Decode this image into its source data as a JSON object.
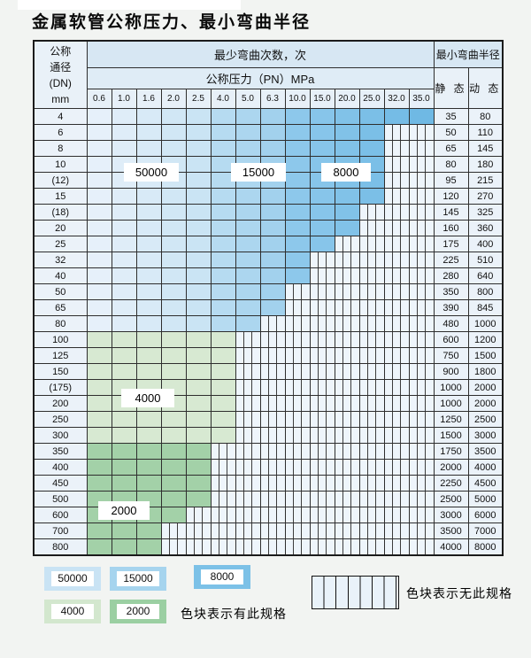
{
  "title": "金属软管公称压力、最小弯曲半径",
  "colors": {
    "blue_cols": [
      "#e6f0fa",
      "#dfedf8",
      "#d8eaf7",
      "#d1e7f5",
      "#cae4f4",
      "#b6dbf1",
      "#acd6ef",
      "#a2d1ed",
      "#8dc8eb",
      "#87c5ea",
      "#81c2e8",
      "#7bbfe7",
      "#75bce6",
      "#6fb9e4"
    ],
    "green_4000": "#d7e9d2",
    "green_2000": "#a3d1a8",
    "hatch_bg": "#eef5fb"
  },
  "table": {
    "header": {
      "dn_lines": [
        "公称",
        "通径",
        "(DN)",
        "mm"
      ],
      "cycles_title": "最少弯曲次数，次",
      "pressure_title": "公称压力（PN）MPa",
      "radius_title": "最小弯曲半径",
      "static_label": "静 态",
      "dynamic_label": "动 态",
      "pressures": [
        "0.6",
        "1.0",
        "1.6",
        "2.0",
        "2.5",
        "4.0",
        "5.0",
        "6.3",
        "10.0",
        "15.0",
        "20.0",
        "25.0",
        "32.0",
        "35.0"
      ]
    },
    "rows": [
      {
        "dn": "4",
        "colored": 14,
        "palette": "blue",
        "static": "35",
        "dynamic": "80"
      },
      {
        "dn": "6",
        "colored": 12,
        "palette": "blue",
        "static": "50",
        "dynamic": "110"
      },
      {
        "dn": "8",
        "colored": 12,
        "palette": "blue",
        "static": "65",
        "dynamic": "145"
      },
      {
        "dn": "10",
        "colored": 12,
        "palette": "blue",
        "static": "80",
        "dynamic": "180"
      },
      {
        "dn": "(12)",
        "colored": 12,
        "palette": "blue",
        "static": "95",
        "dynamic": "215"
      },
      {
        "dn": "15",
        "colored": 12,
        "palette": "blue",
        "static": "120",
        "dynamic": "270"
      },
      {
        "dn": "(18)",
        "colored": 11,
        "palette": "blue",
        "static": "145",
        "dynamic": "325"
      },
      {
        "dn": "20",
        "colored": 11,
        "palette": "blue",
        "static": "160",
        "dynamic": "360"
      },
      {
        "dn": "25",
        "colored": 10,
        "palette": "blue",
        "static": "175",
        "dynamic": "400"
      },
      {
        "dn": "32",
        "colored": 9,
        "palette": "blue",
        "static": "225",
        "dynamic": "510"
      },
      {
        "dn": "40",
        "colored": 9,
        "palette": "blue",
        "static": "280",
        "dynamic": "640"
      },
      {
        "dn": "50",
        "colored": 8,
        "palette": "blue",
        "static": "350",
        "dynamic": "800"
      },
      {
        "dn": "65",
        "colored": 8,
        "palette": "blue",
        "static": "390",
        "dynamic": "845"
      },
      {
        "dn": "80",
        "colored": 7,
        "palette": "blue",
        "static": "480",
        "dynamic": "1000"
      },
      {
        "dn": "100",
        "colored": 6,
        "palette": "g4",
        "static": "600",
        "dynamic": "1200"
      },
      {
        "dn": "125",
        "colored": 6,
        "palette": "g4",
        "static": "750",
        "dynamic": "1500"
      },
      {
        "dn": "150",
        "colored": 6,
        "palette": "g4",
        "static": "900",
        "dynamic": "1800"
      },
      {
        "dn": "(175)",
        "colored": 6,
        "palette": "g4",
        "static": "1000",
        "dynamic": "2000"
      },
      {
        "dn": "200",
        "colored": 6,
        "palette": "g4",
        "static": "1000",
        "dynamic": "2000"
      },
      {
        "dn": "250",
        "colored": 6,
        "palette": "g4",
        "static": "1250",
        "dynamic": "2500"
      },
      {
        "dn": "300",
        "colored": 6,
        "palette": "g4",
        "static": "1500",
        "dynamic": "3000"
      },
      {
        "dn": "350",
        "colored": 5,
        "palette": "g2",
        "static": "1750",
        "dynamic": "3500"
      },
      {
        "dn": "400",
        "colored": 5,
        "palette": "g2",
        "static": "2000",
        "dynamic": "4000"
      },
      {
        "dn": "450",
        "colored": 5,
        "palette": "g2",
        "static": "2250",
        "dynamic": "4500"
      },
      {
        "dn": "500",
        "colored": 5,
        "palette": "g2",
        "static": "2500",
        "dynamic": "5000"
      },
      {
        "dn": "600",
        "colored": 4,
        "palette": "g2",
        "static": "3000",
        "dynamic": "6000"
      },
      {
        "dn": "700",
        "colored": 3,
        "palette": "g2",
        "static": "3500",
        "dynamic": "7000"
      },
      {
        "dn": "800",
        "colored": 3,
        "palette": "g2",
        "static": "4000",
        "dynamic": "8000"
      }
    ]
  },
  "cycle_overlays": [
    "50000",
    "15000",
    "8000",
    "4000",
    "2000"
  ],
  "legend": {
    "swatches": [
      {
        "label": "50000",
        "color": "#c9e3f4"
      },
      {
        "label": "15000",
        "color": "#a6d4ee"
      },
      {
        "label": "8000",
        "color": "#7cc1e7"
      },
      {
        "label": "4000",
        "color": "#d3e7ce"
      },
      {
        "label": "2000",
        "color": "#9bcfa2"
      }
    ],
    "has_spec_text": "色块表示有此规格",
    "no_spec_text": "色块表示无此规格"
  }
}
